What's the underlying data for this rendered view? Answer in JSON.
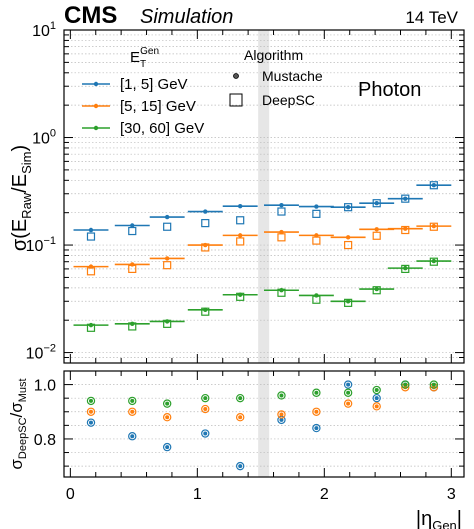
{
  "header": {
    "experiment": "CMS",
    "status": "Simulation",
    "energy": "14 TeV"
  },
  "legend": {
    "energy_title": "E_T^Gen",
    "algorithm_title": "Algorithm",
    "mustache_label": "Mustache",
    "deepsc_label": "DeepSC"
  },
  "annotation": "Photon",
  "chart_data": [
    {
      "type": "scatter",
      "panel": "top",
      "yscale": "log",
      "ylim": [
        0.008,
        10
      ],
      "xlim": [
        -0.05,
        3.1
      ],
      "ylabel": "σ(E_Raw/E_Sim)",
      "xticks": [
        0,
        1,
        2,
        3
      ],
      "yticks": [
        "10^-2",
        "10^-1",
        "10^0",
        "10^1"
      ],
      "grid": "horizontal dotted",
      "x": [
        0.1625,
        0.4875,
        0.7625,
        1.0625,
        1.3375,
        1.6625,
        1.9375,
        2.1875,
        2.4125,
        2.6375,
        2.8625
      ],
      "xerr": 0.1375,
      "shaded_band": [
        1.479,
        1.566
      ],
      "series": [
        {
          "name": "[1, 5] GeV",
          "color": "#1f77b4",
          "mustache": [
            0.138,
            0.152,
            0.182,
            0.205,
            0.23,
            0.235,
            0.228,
            0.225,
            0.245,
            0.27,
            0.36
          ],
          "deepsc": [
            0.12,
            0.135,
            0.148,
            0.16,
            0.17,
            0.205,
            0.195,
            0.225,
            0.245,
            0.27,
            0.36
          ]
        },
        {
          "name": "[5, 15] GeV",
          "color": "#ff7f0e",
          "mustache": [
            0.063,
            0.066,
            0.075,
            0.1,
            0.123,
            0.132,
            0.123,
            0.118,
            0.14,
            0.142,
            0.15
          ],
          "deepsc": [
            0.057,
            0.06,
            0.065,
            0.095,
            0.108,
            0.118,
            0.11,
            0.1,
            0.122,
            0.138,
            0.148
          ]
        },
        {
          "name": "[30, 60] GeV",
          "color": "#2ca02c",
          "mustache": [
            0.018,
            0.0185,
            0.0195,
            0.025,
            0.0345,
            0.038,
            0.034,
            0.03,
            0.039,
            0.061,
            0.071
          ],
          "deepsc": [
            0.017,
            0.0175,
            0.0185,
            0.024,
            0.033,
            0.036,
            0.031,
            0.029,
            0.038,
            0.06,
            0.07
          ]
        }
      ]
    },
    {
      "type": "scatter",
      "panel": "ratio",
      "ylim": [
        0.66,
        1.05
      ],
      "xlim": [
        -0.05,
        3.1
      ],
      "ylabel": "σ_DeepSC/σ_Must",
      "xlabel": "|η_Gen|",
      "xticks": [
        0,
        1,
        2,
        3
      ],
      "yticks": [
        0.8,
        1.0
      ],
      "grid": "horizontal dotted",
      "x": [
        0.1625,
        0.4875,
        0.7625,
        1.0625,
        1.3375,
        1.6625,
        1.9375,
        2.1875,
        2.4125,
        2.6375,
        2.8625
      ],
      "series": [
        {
          "name": "[1, 5] GeV",
          "color": "#1f77b4",
          "values": [
            0.86,
            0.81,
            0.77,
            0.82,
            0.7,
            0.87,
            0.84,
            1.0,
            0.95,
            1.0,
            0.99
          ]
        },
        {
          "name": "[5, 15] GeV",
          "color": "#ff7f0e",
          "values": [
            0.9,
            0.9,
            0.88,
            0.91,
            0.88,
            0.89,
            0.9,
            0.93,
            0.92,
            0.99,
            0.99
          ]
        },
        {
          "name": "[30, 60] GeV",
          "color": "#2ca02c",
          "values": [
            0.94,
            0.94,
            0.93,
            0.95,
            0.95,
            0.96,
            0.97,
            0.97,
            0.98,
            1.0,
            1.0
          ]
        }
      ]
    }
  ]
}
